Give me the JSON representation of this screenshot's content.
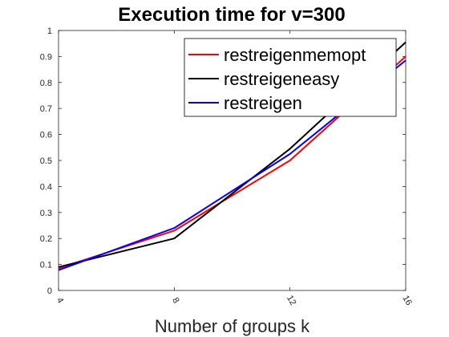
{
  "chart_data": {
    "type": "line",
    "title": "Execution time for v=300",
    "xlabel": "Number of groups k",
    "ylabel": "",
    "x": [
      4,
      8,
      12,
      16
    ],
    "xlim": [
      4,
      16
    ],
    "ylim": [
      0,
      1
    ],
    "xticks": [
      4,
      8,
      12,
      16
    ],
    "yticks": [
      0,
      0.1,
      0.2,
      0.3,
      0.4,
      0.5,
      0.6,
      0.7,
      0.8,
      0.9,
      1
    ],
    "grid": false,
    "legend_position": "top-right",
    "series": [
      {
        "name": "restreigenmemopt",
        "color": "#ff0000",
        "values": [
          0.085,
          0.23,
          0.5,
          0.9
        ]
      },
      {
        "name": "restreigeneasy",
        "color": "#000000",
        "values": [
          0.09,
          0.2,
          0.545,
          0.955
        ]
      },
      {
        "name": "restreigen",
        "color": "#0000ff",
        "values": [
          0.078,
          0.24,
          0.525,
          0.885
        ]
      }
    ]
  }
}
